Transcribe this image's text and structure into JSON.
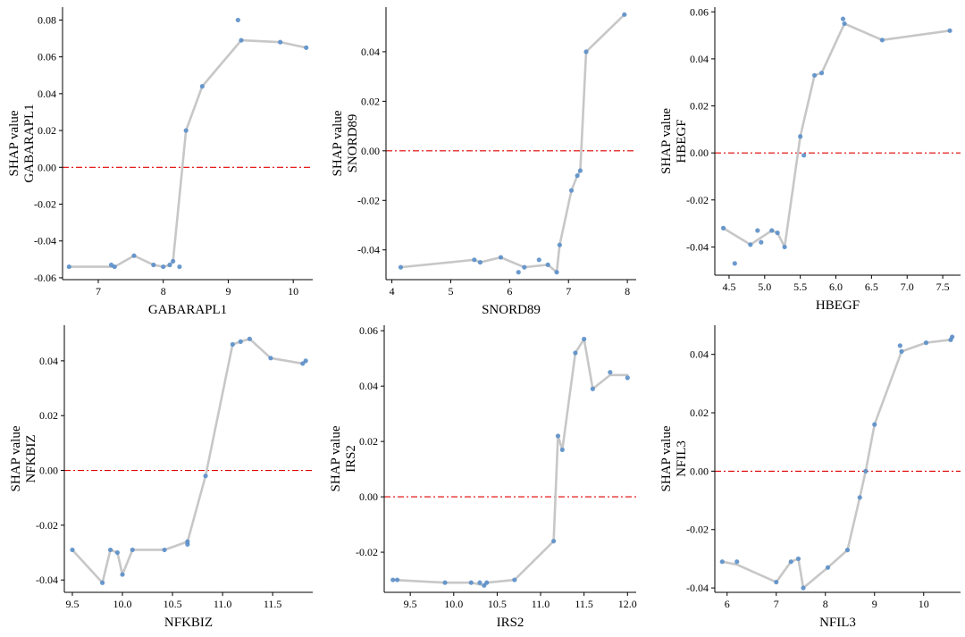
{
  "colors": {
    "points": "#5b8fc9",
    "trend_line": "#c7c7c7",
    "zero_line": "#e00000",
    "axis": "#000000"
  },
  "chart_data": [
    {
      "type": "scatter",
      "xlabel": "GABARAPL1",
      "ylabel": "SHAP value\nGABARAPL1",
      "xlim": [
        6.45,
        10.3
      ],
      "ylim": [
        -0.061,
        0.087
      ],
      "xticks": [
        7,
        8,
        9,
        10
      ],
      "yticks": [
        -0.06,
        -0.04,
        -0.02,
        0.0,
        0.02,
        0.04,
        0.06,
        0.08
      ],
      "zero_line": 0,
      "points": [
        [
          6.55,
          -0.054
        ],
        [
          7.2,
          -0.053
        ],
        [
          7.25,
          -0.054
        ],
        [
          7.55,
          -0.048
        ],
        [
          7.85,
          -0.053
        ],
        [
          8.0,
          -0.054
        ],
        [
          8.1,
          -0.053
        ],
        [
          8.15,
          -0.051
        ],
        [
          8.25,
          -0.054
        ],
        [
          8.35,
          0.02
        ],
        [
          8.6,
          0.044
        ],
        [
          9.15,
          0.08
        ],
        [
          9.2,
          0.069
        ],
        [
          9.8,
          0.068
        ],
        [
          10.2,
          0.065
        ]
      ],
      "line": [
        [
          6.55,
          -0.054
        ],
        [
          7.25,
          -0.054
        ],
        [
          7.55,
          -0.048
        ],
        [
          7.85,
          -0.053
        ],
        [
          8.0,
          -0.054
        ],
        [
          8.1,
          -0.053
        ],
        [
          8.15,
          -0.051
        ],
        [
          8.35,
          0.02
        ],
        [
          8.6,
          0.044
        ],
        [
          9.2,
          0.069
        ],
        [
          9.8,
          0.068
        ],
        [
          10.2,
          0.065
        ]
      ]
    },
    {
      "type": "scatter",
      "xlabel": "SNORD89",
      "ylabel": "SHAP value\nSNORD89",
      "xlim": [
        3.9,
        8.15
      ],
      "ylim": [
        -0.052,
        0.058
      ],
      "xticks": [
        4,
        5,
        6,
        7,
        8
      ],
      "yticks": [
        -0.04,
        -0.02,
        0.0,
        0.02,
        0.04
      ],
      "zero_line": 0,
      "points": [
        [
          4.15,
          -0.047
        ],
        [
          5.4,
          -0.044
        ],
        [
          5.5,
          -0.045
        ],
        [
          5.85,
          -0.043
        ],
        [
          6.15,
          -0.049
        ],
        [
          6.25,
          -0.047
        ],
        [
          6.5,
          -0.044
        ],
        [
          6.65,
          -0.046
        ],
        [
          6.8,
          -0.049
        ],
        [
          6.85,
          -0.038
        ],
        [
          7.05,
          -0.016
        ],
        [
          7.15,
          -0.01
        ],
        [
          7.2,
          -0.008
        ],
        [
          7.3,
          0.04
        ],
        [
          7.95,
          0.055
        ]
      ],
      "line": [
        [
          4.15,
          -0.047
        ],
        [
          5.4,
          -0.044
        ],
        [
          5.5,
          -0.045
        ],
        [
          5.85,
          -0.043
        ],
        [
          6.25,
          -0.047
        ],
        [
          6.65,
          -0.046
        ],
        [
          6.8,
          -0.049
        ],
        [
          6.85,
          -0.038
        ],
        [
          7.05,
          -0.016
        ],
        [
          7.15,
          -0.01
        ],
        [
          7.2,
          -0.008
        ],
        [
          7.3,
          0.04
        ],
        [
          7.95,
          0.055
        ]
      ]
    },
    {
      "type": "scatter",
      "xlabel": "HBEGF",
      "ylabel": "SHAP value\nHBEGF",
      "xlim": [
        4.3,
        7.75
      ],
      "ylim": [
        -0.052,
        0.062
      ],
      "xticks": [
        4.5,
        5.0,
        5.5,
        6.0,
        6.5,
        7.0,
        7.5
      ],
      "yticks": [
        -0.04,
        -0.02,
        0.0,
        0.02,
        0.04,
        0.06
      ],
      "zero_line": 0,
      "points": [
        [
          4.42,
          -0.032
        ],
        [
          4.58,
          -0.047
        ],
        [
          4.8,
          -0.039
        ],
        [
          4.9,
          -0.033
        ],
        [
          4.95,
          -0.038
        ],
        [
          5.1,
          -0.033
        ],
        [
          5.18,
          -0.034
        ],
        [
          5.28,
          -0.04
        ],
        [
          5.5,
          0.007
        ],
        [
          5.55,
          -0.001
        ],
        [
          5.7,
          0.033
        ],
        [
          5.8,
          0.034
        ],
        [
          6.1,
          0.057
        ],
        [
          6.12,
          0.055
        ],
        [
          6.65,
          0.048
        ],
        [
          7.6,
          0.052
        ]
      ],
      "line": [
        [
          4.42,
          -0.032
        ],
        [
          4.8,
          -0.039
        ],
        [
          5.1,
          -0.033
        ],
        [
          5.18,
          -0.034
        ],
        [
          5.28,
          -0.04
        ],
        [
          5.5,
          0.007
        ],
        [
          5.7,
          0.033
        ],
        [
          5.8,
          0.034
        ],
        [
          6.12,
          0.055
        ],
        [
          6.65,
          0.048
        ],
        [
          7.6,
          0.052
        ]
      ]
    },
    {
      "type": "scatter",
      "xlabel": "NFKBIZ",
      "ylabel": "SHAP value\nNFKBIZ",
      "xlim": [
        9.42,
        11.9
      ],
      "ylim": [
        -0.0445,
        0.053
      ],
      "xticks": [
        9.5,
        10.0,
        10.5,
        11.0,
        11.5
      ],
      "yticks": [
        -0.04,
        -0.02,
        0.0,
        0.02,
        0.04
      ],
      "zero_line": 0,
      "points": [
        [
          9.5,
          -0.029
        ],
        [
          9.8,
          -0.041
        ],
        [
          9.88,
          -0.029
        ],
        [
          9.95,
          -0.03
        ],
        [
          10.0,
          -0.038
        ],
        [
          10.1,
          -0.029
        ],
        [
          10.42,
          -0.029
        ],
        [
          10.65,
          -0.026
        ],
        [
          10.65,
          -0.027
        ],
        [
          10.83,
          -0.002
        ],
        [
          11.1,
          0.046
        ],
        [
          11.18,
          0.047
        ],
        [
          11.27,
          0.048
        ],
        [
          11.48,
          0.041
        ],
        [
          11.8,
          0.039
        ],
        [
          11.83,
          0.04
        ]
      ],
      "line": [
        [
          9.5,
          -0.029
        ],
        [
          9.8,
          -0.041
        ],
        [
          9.88,
          -0.029
        ],
        [
          9.95,
          -0.03
        ],
        [
          10.0,
          -0.038
        ],
        [
          10.1,
          -0.029
        ],
        [
          10.42,
          -0.029
        ],
        [
          10.65,
          -0.026
        ],
        [
          10.83,
          -0.002
        ],
        [
          11.1,
          0.046
        ],
        [
          11.18,
          0.047
        ],
        [
          11.27,
          0.048
        ],
        [
          11.48,
          0.041
        ],
        [
          11.8,
          0.039
        ],
        [
          11.83,
          0.04
        ]
      ]
    },
    {
      "type": "scatter",
      "xlabel": "IRS2",
      "ylabel": "SHAP value\nIRS2",
      "xlim": [
        9.2,
        12.1
      ],
      "ylim": [
        -0.0345,
        0.062
      ],
      "xticks": [
        9.5,
        10.0,
        10.5,
        11.0,
        11.5,
        12.0
      ],
      "yticks": [
        -0.02,
        0.0,
        0.02,
        0.04,
        0.06
      ],
      "zero_line": 0,
      "points": [
        [
          9.3,
          -0.03
        ],
        [
          9.35,
          -0.03
        ],
        [
          9.9,
          -0.031
        ],
        [
          10.2,
          -0.031
        ],
        [
          10.3,
          -0.031
        ],
        [
          10.35,
          -0.032
        ],
        [
          10.38,
          -0.031
        ],
        [
          10.7,
          -0.03
        ],
        [
          11.15,
          -0.016
        ],
        [
          11.2,
          0.022
        ],
        [
          11.25,
          0.017
        ],
        [
          11.4,
          0.052
        ],
        [
          11.5,
          0.057
        ],
        [
          11.6,
          0.039
        ],
        [
          11.8,
          0.045
        ],
        [
          12.0,
          0.043
        ]
      ],
      "line": [
        [
          9.3,
          -0.03
        ],
        [
          9.9,
          -0.031
        ],
        [
          10.2,
          -0.031
        ],
        [
          10.35,
          -0.032
        ],
        [
          10.38,
          -0.031
        ],
        [
          10.7,
          -0.03
        ],
        [
          11.15,
          -0.016
        ],
        [
          11.2,
          0.022
        ],
        [
          11.25,
          0.017
        ],
        [
          11.4,
          0.052
        ],
        [
          11.5,
          0.057
        ],
        [
          11.6,
          0.039
        ],
        [
          11.8,
          0.044
        ],
        [
          12.0,
          0.044
        ]
      ]
    },
    {
      "type": "scatter",
      "xlabel": "NFIL3",
      "ylabel": "SHAP value\nNFIL3",
      "xlim": [
        5.75,
        10.75
      ],
      "ylim": [
        -0.0415,
        0.05
      ],
      "xticks": [
        6,
        7,
        8,
        9,
        10
      ],
      "yticks": [
        -0.04,
        -0.02,
        0.0,
        0.02,
        0.04
      ],
      "zero_line": 0,
      "points": [
        [
          5.9,
          -0.031
        ],
        [
          6.2,
          -0.031
        ],
        [
          7.0,
          -0.038
        ],
        [
          7.3,
          -0.031
        ],
        [
          7.45,
          -0.03
        ],
        [
          7.55,
          -0.04
        ],
        [
          8.05,
          -0.033
        ],
        [
          8.45,
          -0.027
        ],
        [
          8.7,
          -0.009
        ],
        [
          8.82,
          0.0
        ],
        [
          9.0,
          0.016
        ],
        [
          9.52,
          0.043
        ],
        [
          9.55,
          0.041
        ],
        [
          10.05,
          0.044
        ],
        [
          10.55,
          0.045
        ],
        [
          10.58,
          0.046
        ]
      ],
      "line": [
        [
          5.9,
          -0.031
        ],
        [
          6.2,
          -0.032
        ],
        [
          7.0,
          -0.038
        ],
        [
          7.3,
          -0.031
        ],
        [
          7.45,
          -0.03
        ],
        [
          7.55,
          -0.04
        ],
        [
          8.05,
          -0.033
        ],
        [
          8.45,
          -0.027
        ],
        [
          8.7,
          -0.009
        ],
        [
          8.82,
          0.0
        ],
        [
          9.0,
          0.016
        ],
        [
          9.55,
          0.041
        ],
        [
          10.05,
          0.044
        ],
        [
          10.55,
          0.045
        ],
        [
          10.58,
          0.046
        ]
      ]
    }
  ]
}
